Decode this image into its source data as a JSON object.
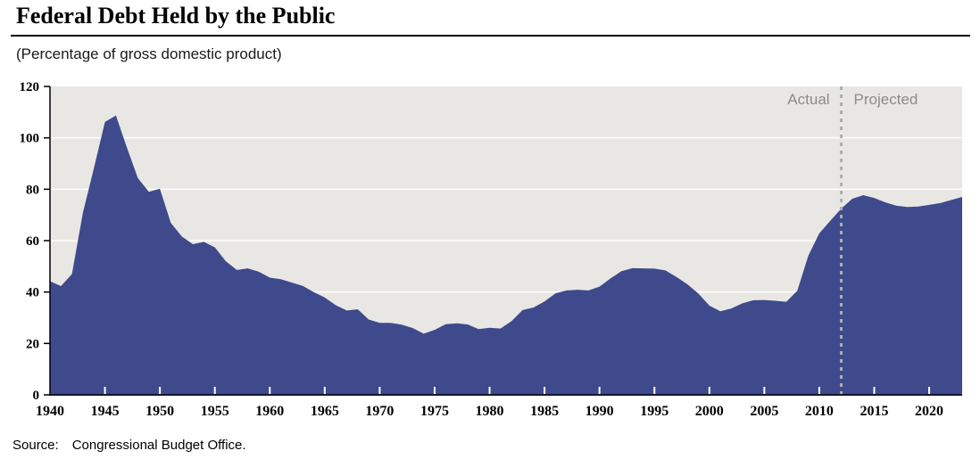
{
  "header": {
    "title": "Federal Debt Held by the Public",
    "subtitle": "(Percentage of gross domestic product)"
  },
  "footer": {
    "source_label": "Source:",
    "source_text": "Congressional Budget Office."
  },
  "annotations": {
    "actual_label": "Actual",
    "projected_label": "Projected",
    "divider_year": 2012
  },
  "colors": {
    "area_fill": "#3F4A8C",
    "plot_bg": "#E8E7E4",
    "gridline": "#FFFFFF",
    "axis": "#000000",
    "baseline": "#15152E",
    "divider": "#ADADB5",
    "annotation_text": "#8C8C8C",
    "xtick_mark": "#FFFFFF"
  },
  "chart_data": {
    "type": "area",
    "title": "Federal Debt Held by the Public",
    "ylabel": "(Percentage of gross domestic product)",
    "xlabel": "",
    "xlim": [
      1940,
      2023
    ],
    "ylim": [
      0,
      120
    ],
    "xticks": [
      1940,
      1945,
      1950,
      1955,
      1960,
      1965,
      1970,
      1975,
      1980,
      1985,
      1990,
      1995,
      2000,
      2005,
      2010,
      2015,
      2020
    ],
    "yticks": [
      0,
      20,
      40,
      60,
      80,
      100,
      120
    ],
    "grid": "horizontal-white-behind-area",
    "legend_position": "none",
    "divider_year": 2012,
    "series": [
      {
        "name": "Actual",
        "years": [
          1940,
          1941,
          1942,
          1943,
          1944,
          1945,
          1946,
          1947,
          1948,
          1949,
          1950,
          1951,
          1952,
          1953,
          1954,
          1955,
          1956,
          1957,
          1958,
          1959,
          1960,
          1961,
          1962,
          1963,
          1964,
          1965,
          1966,
          1967,
          1968,
          1969,
          1970,
          1971,
          1972,
          1973,
          1974,
          1975,
          1976,
          1977,
          1978,
          1979,
          1980,
          1981,
          1982,
          1983,
          1984,
          1985,
          1986,
          1987,
          1988,
          1989,
          1990,
          1991,
          1992,
          1993,
          1994,
          1995,
          1996,
          1997,
          1998,
          1999,
          2000,
          2001,
          2002,
          2003,
          2004,
          2005,
          2006,
          2007,
          2008,
          2009,
          2010,
          2011,
          2012
        ],
        "values": [
          44.2,
          42.3,
          47.0,
          70.9,
          88.3,
          106.2,
          108.7,
          96.2,
          84.3,
          79.0,
          80.2,
          66.9,
          61.6,
          58.6,
          59.5,
          57.4,
          52.0,
          48.6,
          49.2,
          47.9,
          45.6,
          45.0,
          43.7,
          42.4,
          40.0,
          37.9,
          34.9,
          32.8,
          33.3,
          29.3,
          28.0,
          28.0,
          27.3,
          26.0,
          23.8,
          25.3,
          27.5,
          27.8,
          27.4,
          25.6,
          26.1,
          25.8,
          28.7,
          33.0,
          34.0,
          36.3,
          39.5,
          40.6,
          40.9,
          40.6,
          42.1,
          45.3,
          48.1,
          49.3,
          49.2,
          49.1,
          48.4,
          45.9,
          43.0,
          39.4,
          34.7,
          32.5,
          33.6,
          35.6,
          36.8,
          36.9,
          36.6,
          36.2,
          40.5,
          54.1,
          62.8,
          67.7,
          72.5
        ]
      },
      {
        "name": "Projected",
        "years": [
          2013,
          2014,
          2015,
          2016,
          2017,
          2018,
          2019,
          2020,
          2021,
          2022,
          2023
        ],
        "values": [
          76.3,
          77.7,
          76.6,
          74.9,
          73.6,
          73.1,
          73.3,
          73.9,
          74.6,
          75.8,
          77.0
        ]
      }
    ]
  }
}
